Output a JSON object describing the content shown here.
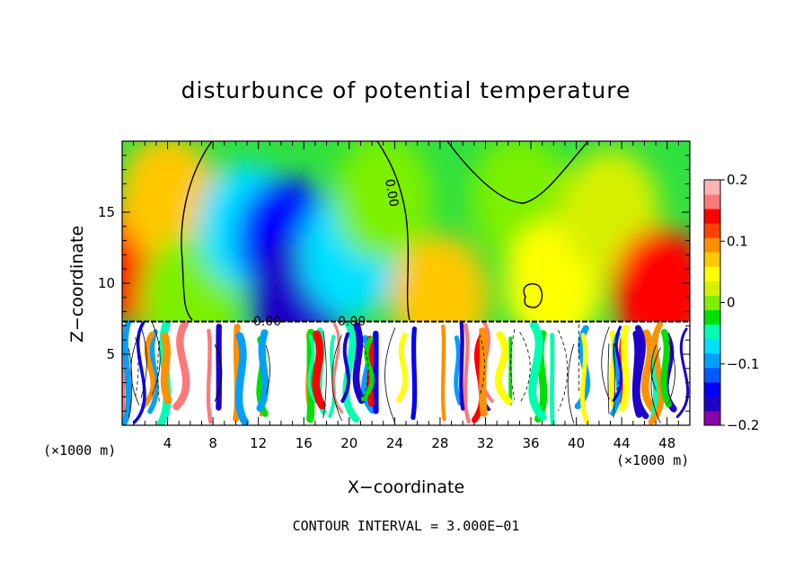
{
  "chart_data": {
    "type": "heatmap",
    "title": "disturbunce of potential temperature",
    "xlabel": "X−coordinate",
    "ylabel": "Z−coordinate",
    "x_unit_label": "(×1000 m)",
    "footer": "CONTOUR INTERVAL = 3.000E−01",
    "xlim": [
      0,
      50
    ],
    "ylim": [
      0,
      20
    ],
    "x_ticks": [
      4,
      8,
      12,
      16,
      20,
      24,
      28,
      32,
      36,
      40,
      44,
      48
    ],
    "y_ticks": [
      5,
      10,
      15
    ],
    "colorbar": {
      "range": [
        -0.2,
        0.2
      ],
      "tick_labels": [
        "0.2",
        "0.1",
        "0",
        "−0.1",
        "−0.2"
      ],
      "tick_values": [
        0.2,
        0.1,
        0,
        -0.1,
        -0.2
      ],
      "colors": [
        "#8a00a8",
        "#1e00c8",
        "#0000ff",
        "#005aff",
        "#00a0ff",
        "#00e0ff",
        "#00ffb0",
        "#00e000",
        "#7cf000",
        "#d6f000",
        "#ffff00",
        "#ffc800",
        "#ff9000",
        "#ff4000",
        "#ff0000",
        "#ff7878",
        "#ffb4b4"
      ]
    },
    "contour_labels": [
      "0.00",
      "0.00",
      "0.00"
    ],
    "regions_upper": [
      {
        "x": 1.5,
        "z": 11.5,
        "value": 0.13
      },
      {
        "x": 4,
        "z": 16,
        "value": 0.06
      },
      {
        "x": 6,
        "z": 9,
        "value": 0.0
      },
      {
        "x": 11,
        "z": 14,
        "value": -0.08
      },
      {
        "x": 14.5,
        "z": 13,
        "value": -0.13
      },
      {
        "x": 15.5,
        "z": 9,
        "value": -0.17
      },
      {
        "x": 20,
        "z": 12,
        "value": -0.06
      },
      {
        "x": 23,
        "z": 16,
        "value": 0.0
      },
      {
        "x": 28,
        "z": 9,
        "value": 0.08
      },
      {
        "x": 35,
        "z": 16,
        "value": 0.0
      },
      {
        "x": 38,
        "z": 10,
        "value": 0.05
      },
      {
        "x": 43,
        "z": 15,
        "value": 0.03
      },
      {
        "x": 47.5,
        "z": 9.5,
        "value": 0.15
      }
    ]
  }
}
